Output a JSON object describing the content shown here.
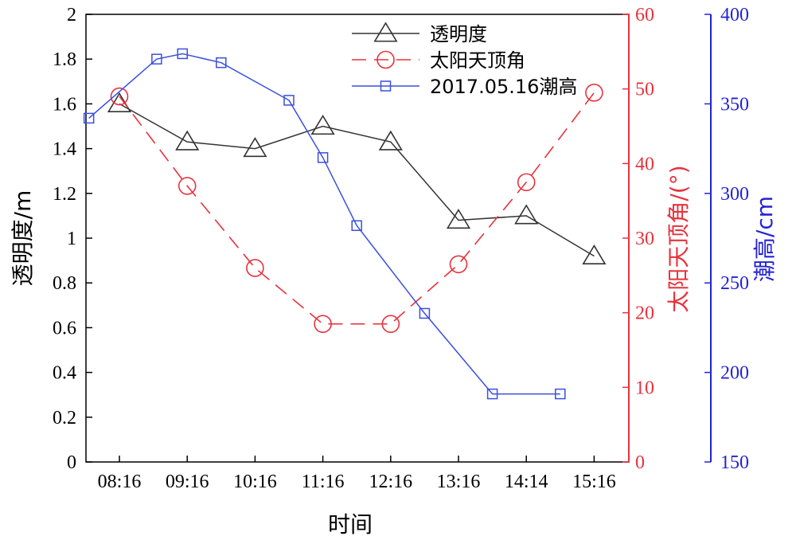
{
  "chart_data": {
    "type": "line",
    "categories": [
      "08:16",
      "09:16",
      "10:16",
      "11:16",
      "12:16",
      "13:16",
      "14:14",
      "15:16"
    ],
    "xlabel": "时间",
    "axes": {
      "left": {
        "label": "透明度/m",
        "lim": [
          0,
          2
        ],
        "ticks": [
          "0",
          "0.2",
          "0.4",
          "0.6",
          "0.8",
          "1",
          "1.2",
          "1.4",
          "1.6",
          "1.8",
          "2"
        ],
        "color": "#000000"
      },
      "right1": {
        "label": "太阳天顶角/(°)",
        "lim": [
          0,
          60
        ],
        "ticks": [
          "0",
          "10",
          "20",
          "30",
          "40",
          "50",
          "60"
        ],
        "color": "#e8323c"
      },
      "right2": {
        "label": "潮高/cm",
        "lim": [
          150,
          400
        ],
        "ticks": [
          "150",
          "200",
          "250",
          "300",
          "350",
          "400"
        ],
        "color": "#2323d6"
      }
    },
    "series": [
      {
        "name": "透明度",
        "axis": "left",
        "marker": "triangle",
        "line": "solid",
        "color": "#333333",
        "x": [
          0,
          1,
          2,
          3,
          4,
          5,
          6,
          7
        ],
        "values": [
          1.6,
          1.43,
          1.4,
          1.5,
          1.43,
          1.08,
          1.1,
          0.92
        ]
      },
      {
        "name": "太阳天顶角",
        "axis": "right1",
        "marker": "circle",
        "line": "dashed",
        "color": "#e8323c",
        "x": [
          0,
          1,
          2,
          3,
          4,
          5,
          6,
          7
        ],
        "values": [
          49,
          37,
          26,
          18.5,
          18.5,
          26.5,
          37.5,
          49.5
        ]
      },
      {
        "name": "2017.05.16潮高",
        "axis": "right2",
        "marker": "square",
        "line": "solid",
        "color": "#3a4fe0",
        "x": [
          -0.45,
          0.55,
          0.93,
          1.5,
          2.5,
          3.0,
          3.5,
          4.5,
          5.5,
          6.5
        ],
        "values": [
          342,
          375,
          378,
          373,
          352,
          320,
          282,
          233,
          188,
          188
        ]
      }
    ],
    "legend": {
      "position": "top-right"
    },
    "grid": false
  }
}
